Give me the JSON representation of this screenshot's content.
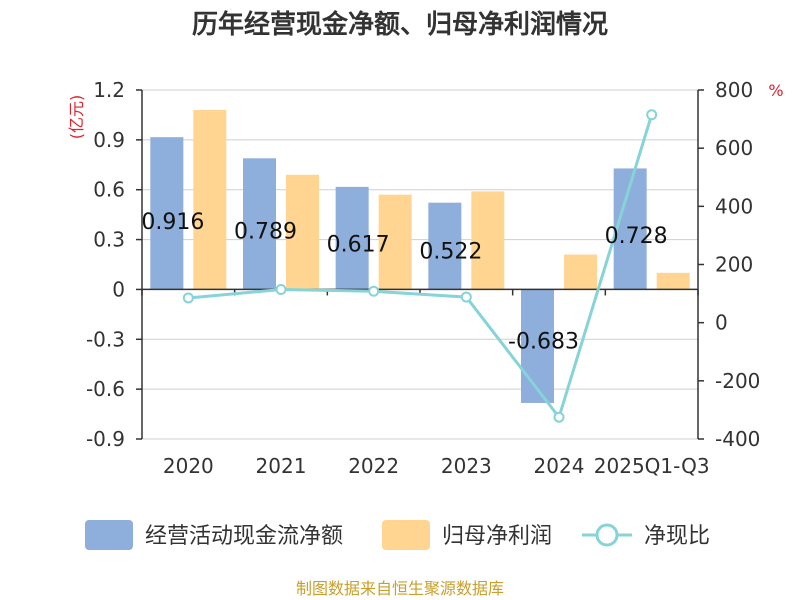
{
  "chart_data": {
    "type": "bar",
    "title": "历年经营现金净额、归母净利润情况",
    "categories": [
      "2020",
      "2021",
      "2022",
      "2023",
      "2024",
      "2025Q1-Q3"
    ],
    "series": [
      {
        "name": "经营活动现金流净额",
        "type": "bar",
        "axis": "left",
        "color": "#8eaedb",
        "values": [
          0.916,
          0.789,
          0.617,
          0.522,
          -0.683,
          0.728
        ]
      },
      {
        "name": "归母净利润",
        "type": "bar",
        "axis": "left",
        "color": "#ffd591",
        "values": [
          1.08,
          0.69,
          0.57,
          0.59,
          0.21,
          0.1
        ]
      },
      {
        "name": "净现比",
        "type": "line",
        "axis": "right",
        "color": "#86d3d8",
        "values": [
          85,
          114,
          108,
          88,
          -325,
          715
        ]
      }
    ],
    "data_labels": [
      "0.916",
      "0.789",
      "0.617",
      "0.522",
      "-0.683",
      "0.728"
    ],
    "y_left": {
      "unit": "(亿元)",
      "ticks": [
        "1.2",
        "0.9",
        "0.6",
        "0.3",
        "0",
        "-0.3",
        "-0.6",
        "-0.9"
      ],
      "ylim": [
        -0.9,
        1.2
      ]
    },
    "y_right": {
      "unit": "%",
      "ticks": [
        "800",
        "600",
        "400",
        "200",
        "0",
        "-200",
        "-400"
      ],
      "ylim": [
        -400,
        800
      ]
    },
    "grid": true,
    "legend_position": "bottom"
  },
  "source": "制图数据来自恒生聚源数据库"
}
